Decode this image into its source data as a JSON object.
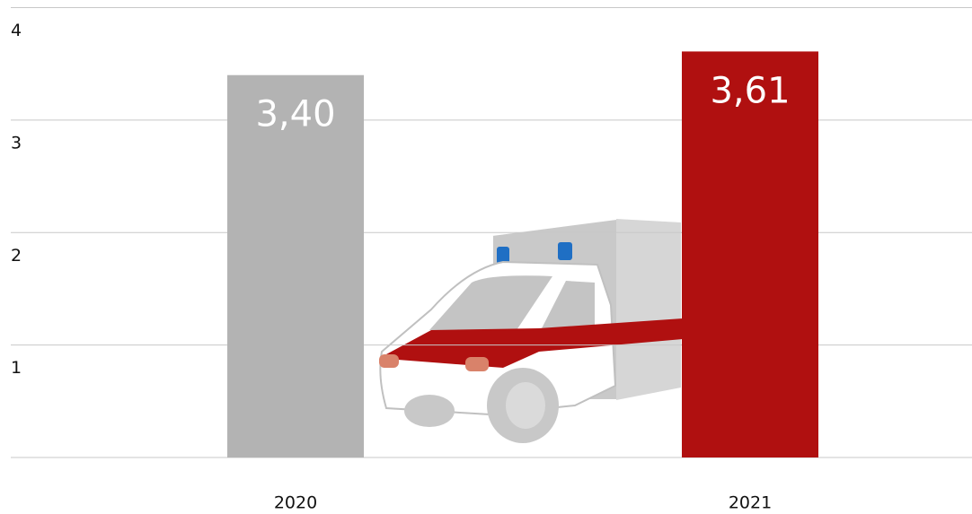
{
  "chart_data": {
    "type": "bar",
    "categories": [
      "2020",
      "2021"
    ],
    "values": [
      3.4,
      3.61
    ],
    "value_labels": [
      "3,40",
      "3,61"
    ],
    "colors": [
      "#b3b3b3",
      "#b01010"
    ],
    "ylim": [
      0,
      4
    ],
    "yticks": [
      1,
      2,
      3,
      4
    ],
    "grid": true
  }
}
